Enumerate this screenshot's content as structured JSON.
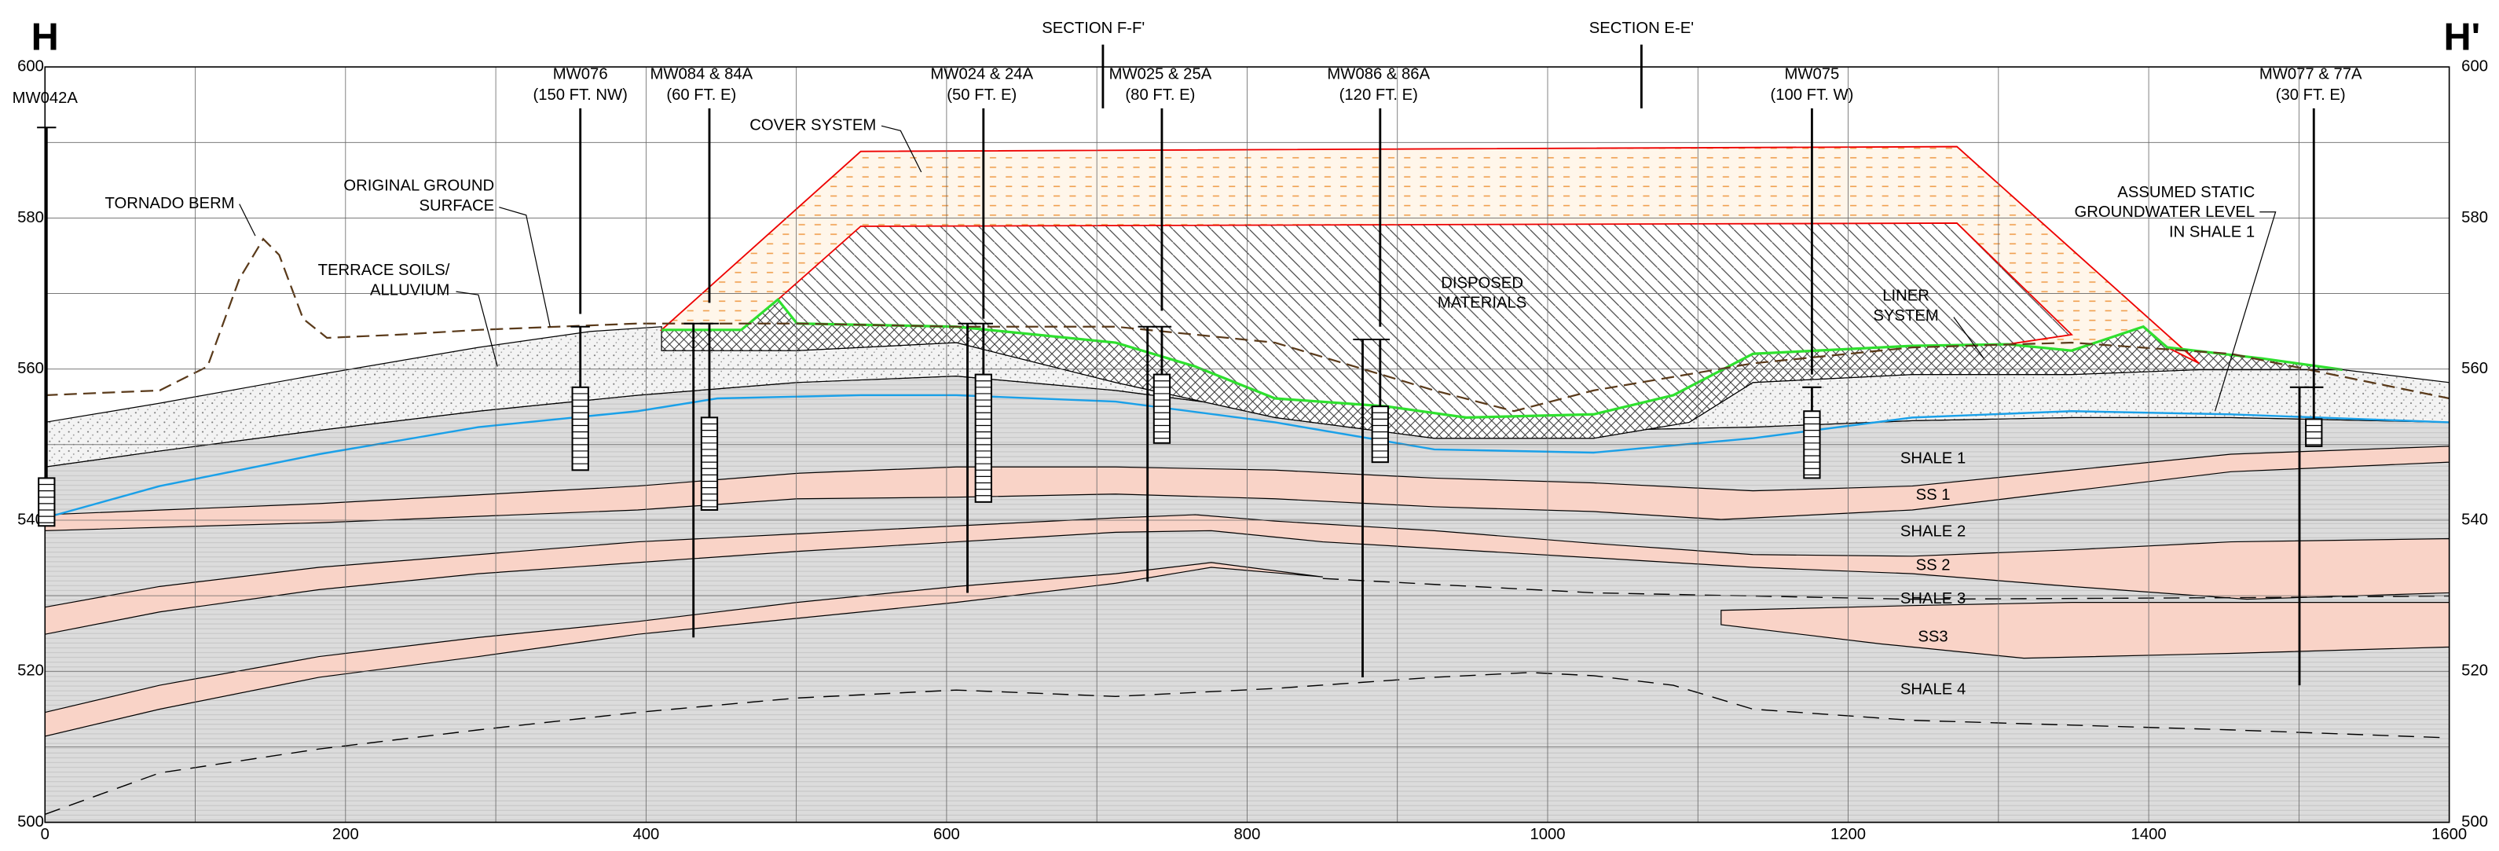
{
  "corner_labels": {
    "left": "H",
    "right": "H'"
  },
  "sections": [
    "SECTION F-F'",
    "SECTION E-E'"
  ],
  "wells": [
    {
      "name": "MW042A"
    },
    {
      "name": "MW076",
      "offset": "(150 FT. NW)"
    },
    {
      "name": "MW084 & 84A",
      "offset": "(60 FT. E)"
    },
    {
      "name": "MW024 & 24A",
      "offset": "(50 FT. E)"
    },
    {
      "name": "MW025 & 25A",
      "offset": "(80 FT. E)"
    },
    {
      "name": "MW086 & 86A",
      "offset": "(120 FT. E)"
    },
    {
      "name": "MW075",
      "offset": "(100 FT. W)"
    },
    {
      "name": "MW077 & 77A",
      "offset": "(30 FT. E)"
    }
  ],
  "annotations": [
    {
      "lines": [
        "COVER SYSTEM"
      ]
    },
    {
      "lines": [
        "ORIGINAL GROUND",
        "SURFACE"
      ]
    },
    {
      "lines": [
        "TORNADO BERM"
      ]
    },
    {
      "lines": [
        "TERRACE SOILS/",
        "ALLUVIUM"
      ]
    },
    {
      "lines": [
        "DISPOSED",
        "MATERIALS"
      ]
    },
    {
      "lines": [
        "LINER",
        "SYSTEM"
      ]
    },
    {
      "lines": [
        "ASSUMED STATIC",
        "GROUNDWATER LEVEL",
        "IN SHALE 1"
      ]
    }
  ],
  "layers": [
    "SHALE 1",
    "SS 1",
    "SHALE 2",
    "SS 2",
    "SHALE 3",
    "SS3",
    "SHALE 4"
  ],
  "x_axis": {
    "ticks": [
      0,
      200,
      400,
      600,
      800,
      1000,
      1200,
      1400,
      1600
    ]
  },
  "y_axis": {
    "ticks": [
      600,
      580,
      560,
      540,
      520,
      500
    ]
  }
}
